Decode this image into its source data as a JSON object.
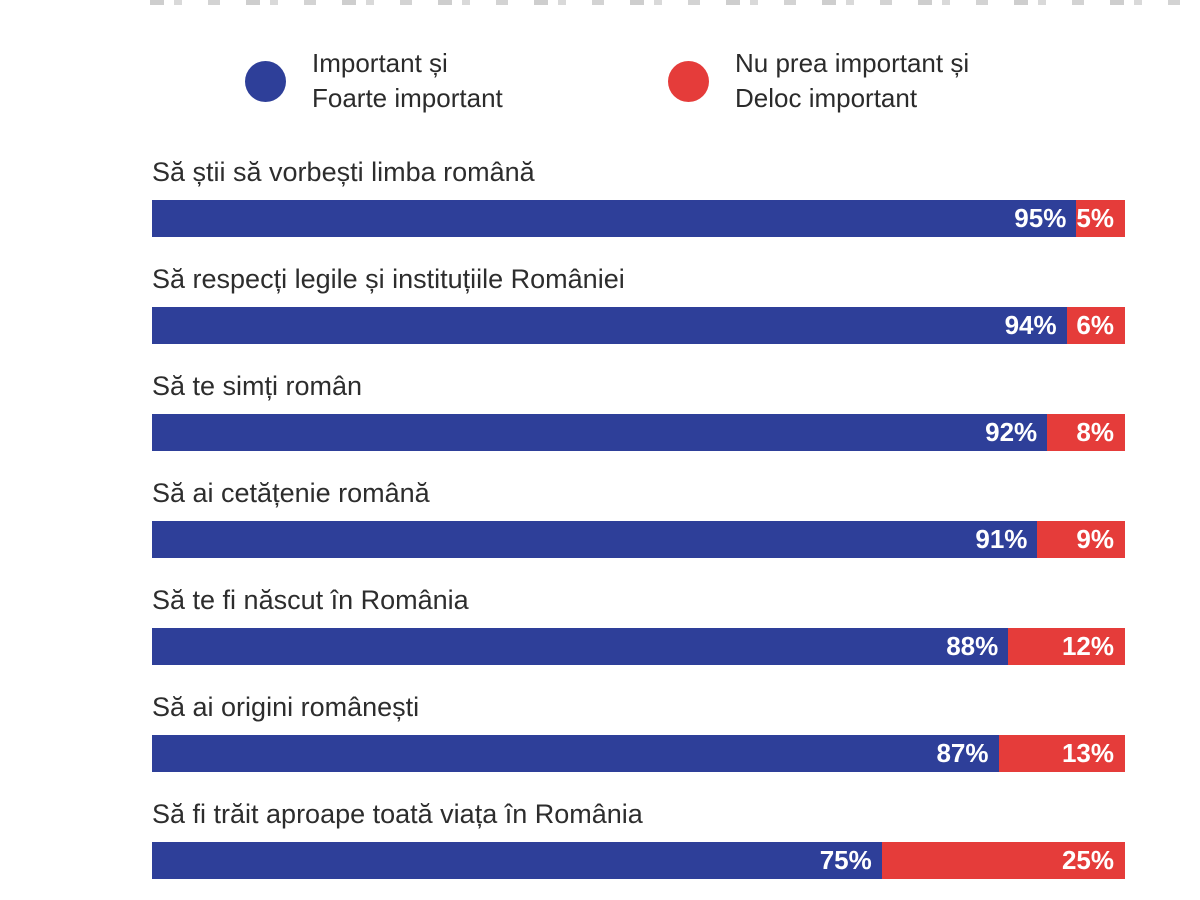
{
  "colors": {
    "important": "#2e3f99",
    "not_important": "#e53c3a",
    "label_text": "#2d2d2d",
    "bar_value_text": "#ffffff",
    "background": "#ffffff"
  },
  "legend": {
    "items": [
      {
        "line1": "Important și",
        "line2": "Foarte important",
        "color": "#2e3f99"
      },
      {
        "line1": "Nu prea important și",
        "line2": "Deloc important",
        "color": "#e53c3a"
      }
    ]
  },
  "chart_data": {
    "type": "bar",
    "orientation": "horizontal",
    "stacked": true,
    "categories": [
      "Să știi să vorbești limba română",
      "Să respecți legile și instituțiile României",
      "Să te simți român",
      "Să ai cetățenie română",
      "Să te fi născut în România",
      "Să ai origini românești",
      "Să fi trăit aproape toată viața în România"
    ],
    "series": [
      {
        "name": "Important și Foarte important",
        "color": "#2e3f99",
        "values": [
          95,
          94,
          92,
          91,
          88,
          87,
          75
        ]
      },
      {
        "name": "Nu prea important și Deloc important",
        "color": "#e53c3a",
        "values": [
          5,
          6,
          8,
          9,
          12,
          13,
          25
        ]
      }
    ],
    "value_suffix": "%",
    "xlim": [
      0,
      100
    ],
    "legend_position": "top",
    "grid": false
  }
}
